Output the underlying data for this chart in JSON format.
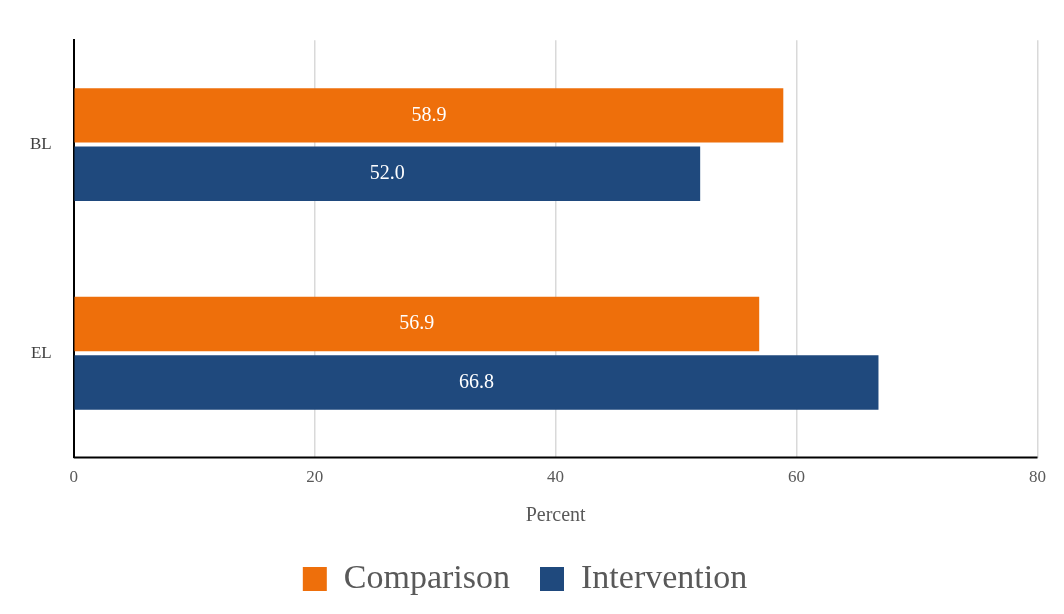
{
  "chart_data": {
    "type": "bar",
    "orientation": "horizontal",
    "xlabel": "Percent",
    "categories": [
      "BL",
      "EL"
    ],
    "series": [
      {
        "name": "Comparison",
        "color": "#ee6f0b",
        "values": [
          58.9,
          56.9
        ]
      },
      {
        "name": "Intervention",
        "color": "#1f497d",
        "values": [
          52.0,
          66.8
        ]
      }
    ],
    "value_labels": [
      [
        "58.9",
        "56.9"
      ],
      [
        "52.0",
        "66.8"
      ]
    ],
    "xlim": [
      0,
      80
    ],
    "xticks": [
      0,
      20,
      40,
      60,
      80
    ],
    "grid": "x",
    "legend": "bottom"
  }
}
